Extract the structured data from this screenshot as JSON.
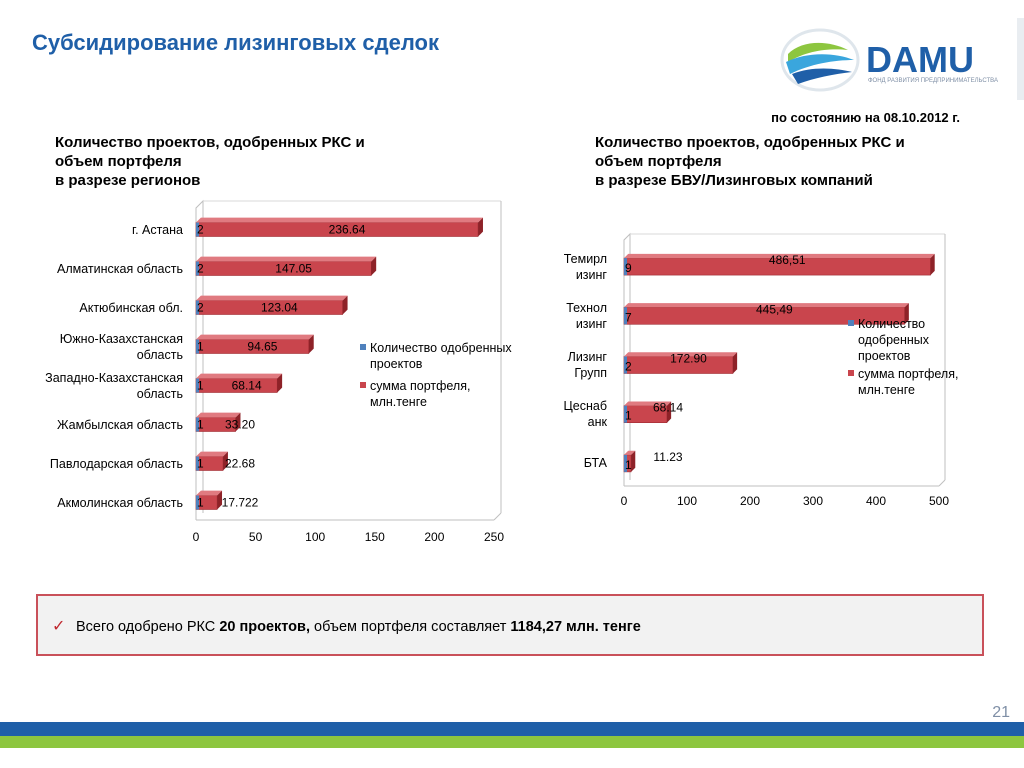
{
  "page": {
    "title": "Субсидирование лизинговых сделок",
    "as_of": "по состоянию на 08.10.2012 г.",
    "page_number": "21",
    "logo_text": "DAMU",
    "logo_subtext": "ФОНД РАЗВИТИЯ ПРЕДПРИНИМАТЕЛЬСТВА"
  },
  "callout": {
    "prefix": "Всего одобрено РКС ",
    "bold1": "20 проектов,",
    "middle": " объем портфеля составляет ",
    "bold2": "1184,27 млн. тенге"
  },
  "colors": {
    "title": "#1f5fa8",
    "bar_red": "#c9454d",
    "bar_blue": "#4f81bd",
    "footer_blue": "#1f5fa8",
    "footer_green": "#8dc63f",
    "callout_border": "#c9515a"
  },
  "chart_data": [
    {
      "type": "bar",
      "orientation": "horizontal",
      "title": "Количество проектов, одобренных РКС и\nобъем портфеля\nв разрезе регионов",
      "categories": [
        "г. Астана",
        "Алматинская область",
        "Актюбинская обл.",
        "Южно-Казахстанская\nобласть",
        "Западно-Казахстанская\nобласть",
        "Жамбылская область",
        "Павлодарская область",
        "Акмолинская область"
      ],
      "series": [
        {
          "name": "Количество одобренных проектов",
          "values": [
            2,
            2,
            2,
            1,
            1,
            1,
            1,
            1
          ],
          "labels": [
            "2",
            "2",
            "2",
            "1",
            "1",
            "1",
            "1",
            "1"
          ]
        },
        {
          "name": "сумма портфеля, млн.тенге",
          "values": [
            236.64,
            147.05,
            123.04,
            94.65,
            68.14,
            33.2,
            22.68,
            17.722
          ],
          "labels": [
            "236.64",
            "147.05",
            "123.04",
            "94.65",
            "68.14",
            "33.20",
            "22.68",
            "17.722"
          ]
        }
      ],
      "xlim": [
        0,
        250
      ],
      "ticks": [
        "0",
        "50",
        "100",
        "150",
        "200",
        "250"
      ],
      "legend": "right"
    },
    {
      "type": "bar",
      "orientation": "horizontal",
      "title": "Количество проектов, одобренных РКС и\nобъем портфеля\nв разрезе БВУ/Лизинговых компаний",
      "categories": [
        "Темирл\nизинг",
        "Технол\nизинг",
        "Лизинг\nГрупп",
        "Цеснаб\nанк",
        "БТА"
      ],
      "series": [
        {
          "name": "Количество\nодобренных\nпроектов",
          "values": [
            9,
            7,
            2,
            1,
            1
          ],
          "labels": [
            "9",
            "7",
            "2",
            "1",
            "1"
          ]
        },
        {
          "name": "сумма портфеля,\nмлн.тенге",
          "values": [
            486.51,
            445.49,
            172.9,
            68.14,
            11.23
          ],
          "labels": [
            "486,51",
            "445,49",
            "172.90",
            "68.14",
            "11.23"
          ]
        }
      ],
      "xlim": [
        0,
        500
      ],
      "ticks": [
        "0",
        "100",
        "200",
        "300",
        "400",
        "500"
      ],
      "legend": "right"
    }
  ]
}
